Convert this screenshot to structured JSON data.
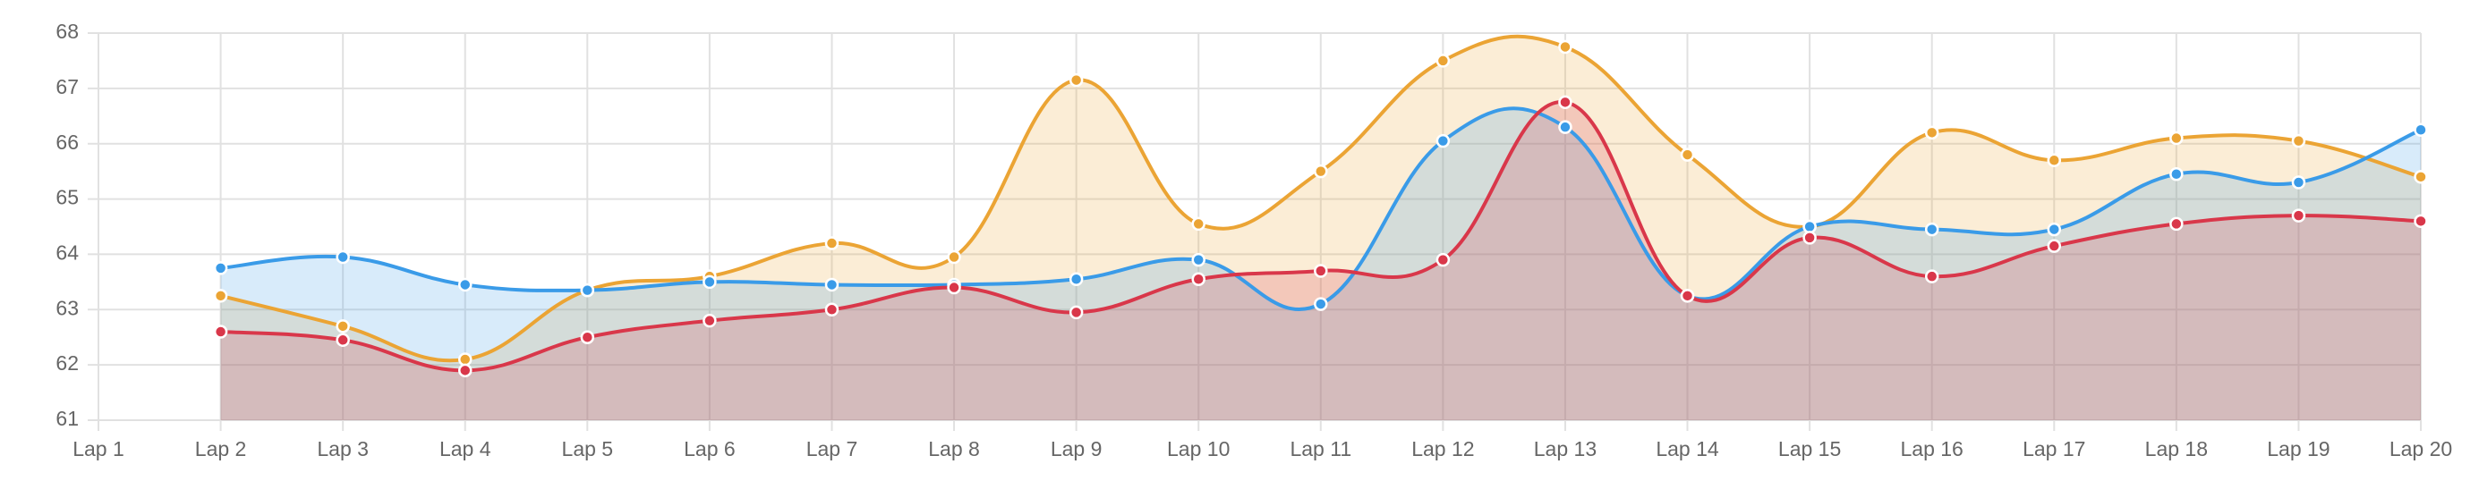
{
  "chart_data": {
    "type": "area",
    "categories": [
      "Lap 1",
      "Lap 2",
      "Lap 3",
      "Lap 4",
      "Lap 5",
      "Lap 6",
      "Lap 7",
      "Lap 8",
      "Lap 9",
      "Lap 10",
      "Lap 11",
      "Lap 12",
      "Lap 13",
      "Lap 14",
      "Lap 15",
      "Lap 16",
      "Lap 17",
      "Lap 18",
      "Lap 19",
      "Lap 20"
    ],
    "series": [
      {
        "color": "#eba434",
        "values": [
          null,
          63.25,
          62.7,
          62.1,
          63.35,
          63.6,
          64.2,
          63.95,
          67.15,
          64.55,
          65.5,
          67.5,
          67.75,
          65.8,
          64.5,
          66.2,
          65.7,
          66.1,
          66.05,
          65.4
        ]
      },
      {
        "color": "#3a9be8",
        "values": [
          null,
          63.75,
          63.95,
          63.45,
          63.35,
          63.5,
          63.45,
          63.45,
          63.55,
          63.9,
          63.1,
          66.05,
          66.3,
          63.25,
          64.5,
          64.45,
          64.45,
          65.45,
          65.3,
          66.25
        ]
      },
      {
        "color": "#d9374a",
        "values": [
          null,
          62.6,
          62.45,
          61.9,
          62.5,
          62.8,
          63.0,
          63.4,
          62.95,
          63.55,
          63.7,
          63.9,
          66.75,
          63.25,
          64.3,
          63.6,
          64.15,
          64.55,
          64.7,
          64.6
        ]
      }
    ],
    "ylim": [
      61,
      68
    ],
    "yticks": [
      61,
      62,
      63,
      64,
      65,
      66,
      67,
      68
    ],
    "grid": true
  }
}
